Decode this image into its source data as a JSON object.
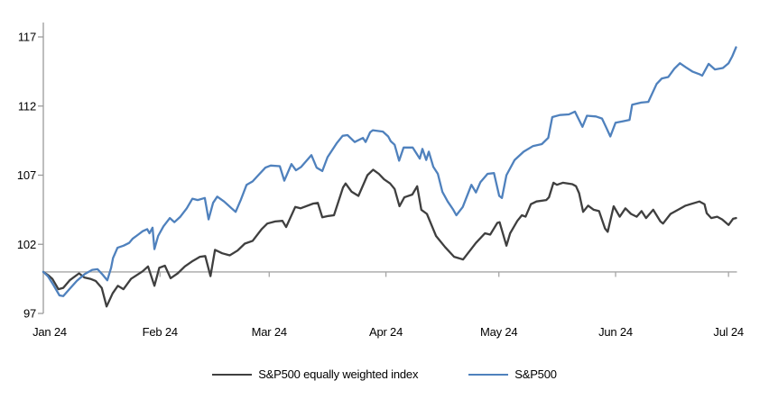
{
  "chart_data": {
    "type": "line",
    "title": "",
    "x_axis": {
      "tick_labels": [
        "Jan 24",
        "Feb 24",
        "Mar 24",
        "Apr 24",
        "May 24",
        "Jun 24",
        "Jul 24"
      ],
      "tick_days": [
        0,
        31,
        60,
        91,
        121,
        152,
        182
      ],
      "domain_days": [
        0,
        184
      ]
    },
    "y_axis": {
      "tick_labels": [
        "97",
        "102",
        "107",
        "112",
        "117"
      ],
      "tick_values": [
        97,
        102,
        107,
        112,
        117
      ],
      "range": [
        97,
        118
      ],
      "baseline_value": 100
    },
    "grid": "baseline-only",
    "legend_position": "bottom-center",
    "axis_color": "#9B9B9B",
    "baseline_color": "#A6A6A6",
    "series": [
      {
        "name": "S&P500 equally weighted index",
        "color": "#3F3F3F",
        "points": [
          [
            0,
            100
          ],
          [
            1.4,
            99.75
          ],
          [
            2.4,
            99.5
          ],
          [
            4,
            98.75
          ],
          [
            5.3,
            98.85
          ],
          [
            7,
            99.4
          ],
          [
            9.5,
            99.9
          ],
          [
            10.9,
            99.6
          ],
          [
            12.5,
            99.5
          ],
          [
            13.9,
            99.35
          ],
          [
            15.5,
            98.85
          ],
          [
            16.8,
            97.5
          ],
          [
            18.4,
            98.45
          ],
          [
            19.8,
            99
          ],
          [
            21.3,
            98.75
          ],
          [
            23.3,
            99.5
          ],
          [
            24.7,
            99.75
          ],
          [
            26.4,
            100.05
          ],
          [
            27.8,
            100.4
          ],
          [
            29.5,
            99
          ],
          [
            30.8,
            100.3
          ],
          [
            32.3,
            100.45
          ],
          [
            33.8,
            99.55
          ],
          [
            35.7,
            99.9
          ],
          [
            37.6,
            100.4
          ],
          [
            39.7,
            100.8
          ],
          [
            41.6,
            101.1
          ],
          [
            43,
            101.15
          ],
          [
            44.4,
            99.7
          ],
          [
            45.6,
            101.6
          ],
          [
            47.5,
            101.35
          ],
          [
            49.5,
            101.2
          ],
          [
            51.6,
            101.55
          ],
          [
            53.5,
            102.05
          ],
          [
            55.6,
            102.25
          ],
          [
            58,
            103.1
          ],
          [
            59.5,
            103.5
          ],
          [
            61.6,
            103.65
          ],
          [
            63.5,
            103.7
          ],
          [
            64.5,
            103.25
          ],
          [
            66.9,
            104.7
          ],
          [
            68.3,
            104.6
          ],
          [
            71.7,
            104.95
          ],
          [
            72.9,
            105
          ],
          [
            74.1,
            103.95
          ],
          [
            75.7,
            104.05
          ],
          [
            77.2,
            104.1
          ],
          [
            79.6,
            106.1
          ],
          [
            80.3,
            106.4
          ],
          [
            81.9,
            105.8
          ],
          [
            83.7,
            105.5
          ],
          [
            86.1,
            107
          ],
          [
            87.6,
            107.4
          ],
          [
            89.1,
            107.1
          ],
          [
            90.5,
            106.7
          ],
          [
            92.1,
            106.4
          ],
          [
            93.3,
            106
          ],
          [
            94.6,
            104.75
          ],
          [
            95.9,
            105.4
          ],
          [
            98,
            105.6
          ],
          [
            99.3,
            106.2
          ],
          [
            100.4,
            104.5
          ],
          [
            101.9,
            104.2
          ],
          [
            104.3,
            102.6
          ],
          [
            106.7,
            101.8
          ],
          [
            109.1,
            101.1
          ],
          [
            111.5,
            100.9
          ],
          [
            114.9,
            102.1
          ],
          [
            117.3,
            102.8
          ],
          [
            118.7,
            102.7
          ],
          [
            120.6,
            103.55
          ],
          [
            121.2,
            103.6
          ],
          [
            123,
            101.9
          ],
          [
            124,
            102.8
          ],
          [
            125.9,
            103.7
          ],
          [
            127.1,
            104.1
          ],
          [
            128.1,
            104
          ],
          [
            129.5,
            104.9
          ],
          [
            131,
            105.1
          ],
          [
            133.6,
            105.2
          ],
          [
            134.3,
            105.4
          ],
          [
            135.5,
            106.45
          ],
          [
            136.4,
            106.3
          ],
          [
            138,
            106.45
          ],
          [
            140.5,
            106.35
          ],
          [
            141.5,
            106.2
          ],
          [
            142.3,
            105.7
          ],
          [
            143.4,
            104.35
          ],
          [
            144.7,
            104.8
          ],
          [
            146.2,
            104.5
          ],
          [
            147.6,
            104.4
          ],
          [
            149.2,
            103.15
          ],
          [
            149.9,
            102.9
          ],
          [
            151.5,
            104.75
          ],
          [
            153.1,
            104
          ],
          [
            154.6,
            104.6
          ],
          [
            156.1,
            104.2
          ],
          [
            157.6,
            104
          ],
          [
            158.9,
            104.4
          ],
          [
            160.1,
            103.9
          ],
          [
            162,
            104.5
          ],
          [
            163.9,
            103.65
          ],
          [
            164.6,
            103.5
          ],
          [
            166.6,
            104.2
          ],
          [
            168.6,
            104.5
          ],
          [
            170.6,
            104.8
          ],
          [
            174.3,
            105.1
          ],
          [
            175.6,
            104.9
          ],
          [
            176.2,
            104.25
          ],
          [
            177.4,
            103.9
          ],
          [
            179,
            104
          ],
          [
            180.3,
            103.8
          ],
          [
            182,
            103.4
          ],
          [
            183.2,
            103.85
          ],
          [
            184,
            103.9
          ]
        ]
      },
      {
        "name": "S&P500",
        "color": "#4F81BD",
        "points": [
          [
            0,
            100
          ],
          [
            1.2,
            99.7
          ],
          [
            2.6,
            99.1
          ],
          [
            4.3,
            98.3
          ],
          [
            5.3,
            98.25
          ],
          [
            6.9,
            98.75
          ],
          [
            8.9,
            99.35
          ],
          [
            11,
            99.85
          ],
          [
            13,
            100.15
          ],
          [
            14.4,
            100.2
          ],
          [
            15.6,
            99.85
          ],
          [
            17,
            99.4
          ],
          [
            18,
            100.3
          ],
          [
            18.5,
            101
          ],
          [
            19.7,
            101.75
          ],
          [
            21.3,
            101.9
          ],
          [
            22.8,
            102.1
          ],
          [
            23.7,
            102.4
          ],
          [
            25.2,
            102.7
          ],
          [
            26.4,
            102.95
          ],
          [
            27.6,
            103.1
          ],
          [
            28.2,
            102.8
          ],
          [
            29,
            103.2
          ],
          [
            29.5,
            101.65
          ],
          [
            30.5,
            102.6
          ],
          [
            31.9,
            103.3
          ],
          [
            33.6,
            103.9
          ],
          [
            34.8,
            103.6
          ],
          [
            36.4,
            104
          ],
          [
            38.1,
            104.6
          ],
          [
            39.6,
            105.3
          ],
          [
            41,
            105.2
          ],
          [
            42.9,
            105.35
          ],
          [
            43.9,
            103.8
          ],
          [
            45.1,
            105
          ],
          [
            46.2,
            105.45
          ],
          [
            48,
            105.1
          ],
          [
            50,
            104.6
          ],
          [
            51.1,
            104.35
          ],
          [
            52.5,
            105.25
          ],
          [
            54,
            106.3
          ],
          [
            55.6,
            106.55
          ],
          [
            57.1,
            107
          ],
          [
            59,
            107.55
          ],
          [
            60.4,
            107.7
          ],
          [
            62.8,
            107.65
          ],
          [
            64,
            106.6
          ],
          [
            65.9,
            107.8
          ],
          [
            67.1,
            107.35
          ],
          [
            68.5,
            107.6
          ],
          [
            71.2,
            108.45
          ],
          [
            72.6,
            107.55
          ],
          [
            74.1,
            107.3
          ],
          [
            75.5,
            108.3
          ],
          [
            77.9,
            109.3
          ],
          [
            79.5,
            109.85
          ],
          [
            80.8,
            109.9
          ],
          [
            82.7,
            109.4
          ],
          [
            84.9,
            109.7
          ],
          [
            85.6,
            109.4
          ],
          [
            86.8,
            110.1
          ],
          [
            87.5,
            110.25
          ],
          [
            90.2,
            110.15
          ],
          [
            91.6,
            109.8
          ],
          [
            92.3,
            109.45
          ],
          [
            93.3,
            109.2
          ],
          [
            94.5,
            108.05
          ],
          [
            95.7,
            109
          ],
          [
            98.1,
            109
          ],
          [
            100,
            108.2
          ],
          [
            100.7,
            108.9
          ],
          [
            101.7,
            108.1
          ],
          [
            102.4,
            108.7
          ],
          [
            103.6,
            107.6
          ],
          [
            104.8,
            107.1
          ],
          [
            106,
            105.8
          ],
          [
            107.4,
            105.1
          ],
          [
            108.9,
            104.5
          ],
          [
            109.7,
            104.1
          ],
          [
            111.4,
            104.7
          ],
          [
            113.7,
            106.3
          ],
          [
            114.9,
            105.75
          ],
          [
            116.1,
            106.5
          ],
          [
            118,
            107.1
          ],
          [
            119.7,
            107.15
          ],
          [
            121.1,
            105.5
          ],
          [
            121.8,
            105.35
          ],
          [
            123,
            107
          ],
          [
            125.2,
            108.1
          ],
          [
            127.6,
            108.7
          ],
          [
            130,
            109.1
          ],
          [
            132.4,
            109.25
          ],
          [
            134.1,
            109.7
          ],
          [
            135.2,
            111.2
          ],
          [
            137.2,
            111.35
          ],
          [
            139.6,
            111.4
          ],
          [
            141.2,
            111.6
          ],
          [
            143.2,
            110.5
          ],
          [
            144.4,
            111.3
          ],
          [
            146.8,
            111.25
          ],
          [
            148.4,
            111.1
          ],
          [
            149.6,
            110.4
          ],
          [
            150.6,
            109.8
          ],
          [
            152,
            110.8
          ],
          [
            154,
            110.9
          ],
          [
            155.7,
            111
          ],
          [
            156.4,
            112.1
          ],
          [
            158.8,
            112.25
          ],
          [
            160.7,
            112.3
          ],
          [
            162.9,
            113.6
          ],
          [
            164.3,
            114
          ],
          [
            166,
            114.1
          ],
          [
            167.6,
            114.7
          ],
          [
            169.1,
            115.1
          ],
          [
            170.7,
            114.8
          ],
          [
            172.4,
            114.5
          ],
          [
            174.3,
            114.3
          ],
          [
            175,
            114.2
          ],
          [
            176.7,
            115.05
          ],
          [
            178.4,
            114.65
          ],
          [
            180.5,
            114.75
          ],
          [
            182,
            115.1
          ],
          [
            183,
            115.6
          ],
          [
            184,
            116.25
          ]
        ]
      }
    ]
  }
}
